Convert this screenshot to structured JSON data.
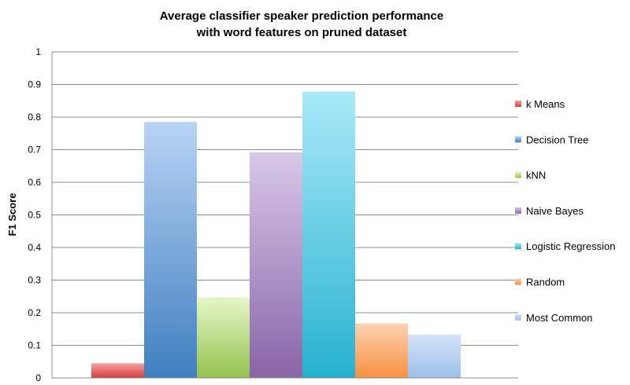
{
  "chart_data": {
    "type": "bar",
    "title": [
      "Average classifier speaker prediction performance",
      "with word features on pruned dataset"
    ],
    "xlabel": "",
    "ylabel": "F1 Score",
    "ylim": [
      0,
      1
    ],
    "yticks": [
      0,
      0.1,
      0.2,
      0.3,
      0.4,
      0.5,
      0.6,
      0.7,
      0.8,
      0.9,
      1
    ],
    "grid": true,
    "legend_position": "right",
    "series": [
      {
        "name": "k Means",
        "value": 0.045,
        "color_top": "#f6a3a3",
        "color_bottom": "#d63d3d"
      },
      {
        "name": "Decision Tree",
        "value": 0.785,
        "color_top": "#b9d3f5",
        "color_bottom": "#3f7fc0"
      },
      {
        "name": "kNN",
        "value": 0.248,
        "color_top": "#e6f6c9",
        "color_bottom": "#92c24f"
      },
      {
        "name": "Naive Bayes",
        "value": 0.692,
        "color_top": "#d8c8e8",
        "color_bottom": "#8964a8"
      },
      {
        "name": "Logistic Regression",
        "value": 0.878,
        "color_top": "#a9e9f8",
        "color_bottom": "#27b2d0"
      },
      {
        "name": "Random",
        "value": 0.167,
        "color_top": "#fcd2b0",
        "color_bottom": "#f79040"
      },
      {
        "name": "Most Common",
        "value": 0.133,
        "color_top": "#d3e3f7",
        "color_bottom": "#9dbfe9"
      }
    ]
  }
}
